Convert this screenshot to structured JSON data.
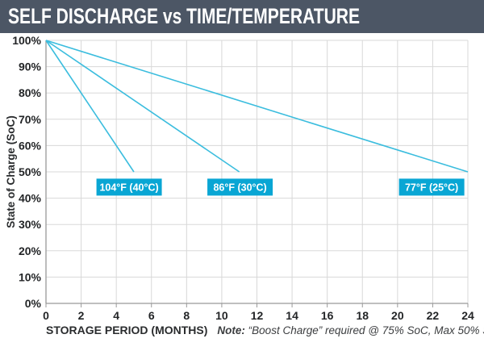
{
  "header": {
    "title": "SELF DISCHARGE vs TIME/TEMPERATURE",
    "bg_color": "#4C5665",
    "text_color": "#FFFFFF"
  },
  "chart_data": {
    "type": "line",
    "title": "SELF DISCHARGE vs TIME/TEMPERATURE",
    "xlabel": "STORAGE PERIOD (MONTHS)",
    "ylabel": "State of Charge (SoC)",
    "xlim": [
      0,
      24
    ],
    "ylim": [
      0,
      100
    ],
    "x_ticks": [
      0,
      2,
      4,
      6,
      8,
      10,
      12,
      14,
      16,
      18,
      20,
      22,
      24
    ],
    "y_ticks": [
      0,
      10,
      20,
      30,
      40,
      50,
      60,
      70,
      80,
      90,
      100
    ],
    "y_tick_suffix": "%",
    "grid": true,
    "legend_position": "inline-labels",
    "series": [
      {
        "name": "104°F (40°C)",
        "points": [
          [
            0,
            100
          ],
          [
            5,
            50
          ]
        ],
        "label_anchor": {
          "x": 4.73,
          "y": 44.2
        }
      },
      {
        "name": "86°F (30°C)",
        "points": [
          [
            0,
            100
          ],
          [
            11,
            50
          ]
        ],
        "label_anchor": {
          "x": 11.04,
          "y": 44.2
        }
      },
      {
        "name": "77°F (25°C)",
        "points": [
          [
            0,
            100
          ],
          [
            24,
            50
          ]
        ],
        "label_anchor": {
          "x": 21.94,
          "y": 44.2
        }
      }
    ],
    "colors": {
      "line": "#3BBDDE",
      "label_box": "#09A6D4",
      "label_text": "#FFFFFF",
      "grid": "#D8D8D8",
      "axis": "#999999",
      "tick_text": "#232527"
    },
    "note_label": "Note:",
    "note_body": " “Boost Charge” required @ 75% SoC, Max 50% Soc"
  }
}
